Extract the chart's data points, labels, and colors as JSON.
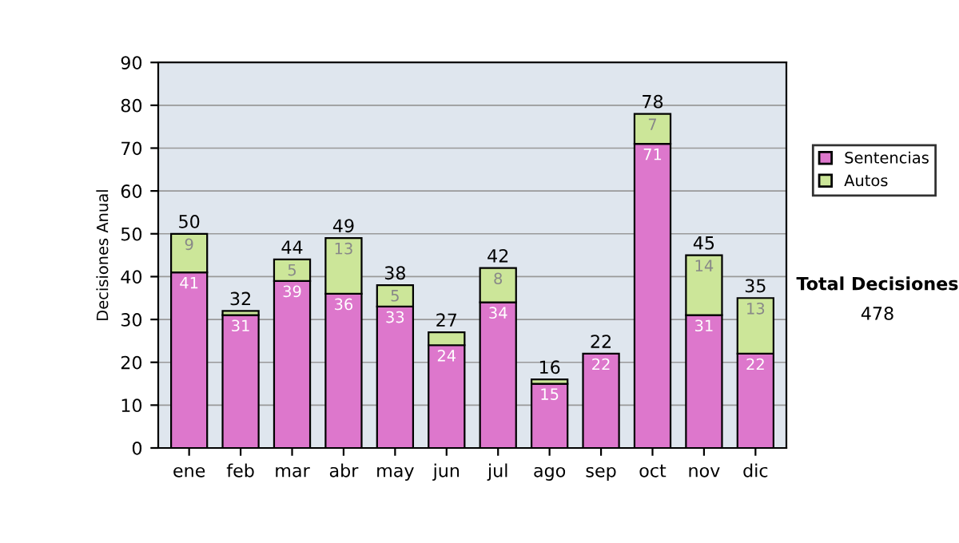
{
  "chart_data": {
    "type": "bar",
    "stacked": true,
    "ylabel": "Decisiones Anual",
    "categories": [
      "ene",
      "feb",
      "mar",
      "abr",
      "may",
      "jun",
      "jul",
      "ago",
      "sep",
      "oct",
      "nov",
      "dic"
    ],
    "series": [
      {
        "name": "Sentencias",
        "color": "#dd77cc",
        "values": [
          41,
          31,
          39,
          36,
          33,
          24,
          34,
          15,
          22,
          71,
          31,
          22
        ],
        "value_labels": [
          "41",
          "31",
          "39",
          "36",
          "33",
          "24",
          "34",
          "15",
          "22",
          "71",
          "31",
          "22"
        ]
      },
      {
        "name": "Autos",
        "color": "#cce699",
        "values": [
          9,
          1,
          5,
          13,
          5,
          3,
          8,
          1,
          null,
          7,
          14,
          13
        ],
        "value_labels": [
          "9",
          null,
          "5",
          "13",
          "5",
          null,
          "8",
          null,
          null,
          "7",
          "14",
          "13"
        ]
      }
    ],
    "totals": [
      "50",
      "32",
      "44",
      "49",
      "38",
      "27",
      "42",
      "16",
      "22",
      "78",
      "45",
      "35"
    ],
    "ylim": [
      0,
      90
    ],
    "yticks": [
      0,
      10,
      20,
      30,
      40,
      50,
      60,
      70,
      80,
      90
    ],
    "grid": "y",
    "legend": "right",
    "annotations": [
      "Total Decisiones",
      "478"
    ]
  }
}
